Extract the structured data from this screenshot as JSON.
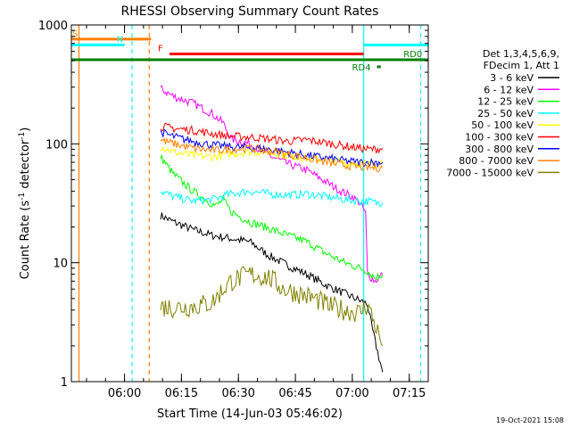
{
  "chart_data": {
    "type": "line",
    "title": "RHESSI Observing Summary Count Rates",
    "xlabel": "Start Time (14-Jun-03 05:46:02)",
    "ylabel": "Count Rate (s⁻¹ detector⁻¹)",
    "ylabel_main": "Count Rate (s",
    "ylabel_exp1": "-1",
    "ylabel_mid": " detector",
    "ylabel_exp2": "-1",
    "ylabel_end": ")",
    "yscale": "log",
    "ylim": [
      1,
      1000
    ],
    "xlim_minutes_since_0546": [
      0,
      94
    ],
    "x_ticks": [
      {
        "label": "06:00",
        "t": 14
      },
      {
        "label": "06:15",
        "t": 29
      },
      {
        "label": "06:30",
        "t": 44
      },
      {
        "label": "06:45",
        "t": 59
      },
      {
        "label": "07:00",
        "t": 74
      },
      {
        "label": "07:15",
        "t": 89
      }
    ],
    "y_ticks": [
      {
        "label": "1",
        "v": 1
      },
      {
        "label": "10",
        "v": 10
      },
      {
        "label": "100",
        "v": 100
      },
      {
        "label": "1000",
        "v": 1000
      }
    ],
    "legend_header": [
      "Det 1,3,4,5,6,9,",
      "FDecim 1, Att 1"
    ],
    "series": [
      {
        "name": "3 - 6 keV",
        "color": "#000000",
        "points": [
          [
            23.5,
            25
          ],
          [
            27,
            22
          ],
          [
            32,
            19
          ],
          [
            37,
            17
          ],
          [
            42,
            16
          ],
          [
            47,
            15
          ],
          [
            52,
            11.5
          ],
          [
            57,
            9.5
          ],
          [
            62,
            8
          ],
          [
            67,
            6.5
          ],
          [
            72,
            5.5
          ],
          [
            76,
            4.8
          ],
          [
            78,
            4.5
          ],
          [
            79,
            3
          ],
          [
            80,
            2.2
          ],
          [
            81,
            1.6
          ],
          [
            82,
            1.2
          ]
        ]
      },
      {
        "name": "6 - 12 keV",
        "color": "#ff00ff",
        "points": [
          [
            23.5,
            290
          ],
          [
            27,
            250
          ],
          [
            32,
            220
          ],
          [
            37,
            180
          ],
          [
            40,
            150
          ],
          [
            42,
            110
          ],
          [
            47,
            100
          ],
          [
            52,
            80
          ],
          [
            57,
            68
          ],
          [
            62,
            60
          ],
          [
            67,
            48
          ],
          [
            71,
            40
          ],
          [
            74,
            36
          ],
          [
            76,
            32
          ],
          [
            77.5,
            26
          ],
          [
            78,
            8
          ],
          [
            80,
            7
          ],
          [
            82,
            8
          ]
        ]
      },
      {
        "name": "12 - 25 keV",
        "color": "#00ff00",
        "points": [
          [
            23.5,
            78
          ],
          [
            27,
            55
          ],
          [
            32,
            40
          ],
          [
            36,
            33
          ],
          [
            38,
            30
          ],
          [
            40,
            34
          ],
          [
            42,
            27
          ],
          [
            47,
            22
          ],
          [
            52,
            19.5
          ],
          [
            57,
            17
          ],
          [
            62,
            15
          ],
          [
            67,
            12
          ],
          [
            72,
            10
          ],
          [
            76,
            9
          ],
          [
            78,
            8.5
          ],
          [
            80,
            7.5
          ],
          [
            82,
            8
          ]
        ]
      },
      {
        "name": "25 - 50 keV",
        "color": "#00ffff",
        "points": [
          [
            23.5,
            40
          ],
          [
            27,
            36
          ],
          [
            32,
            33
          ],
          [
            37,
            34
          ],
          [
            42,
            38
          ],
          [
            47,
            40
          ],
          [
            52,
            38
          ],
          [
            57,
            37
          ],
          [
            62,
            38
          ],
          [
            67,
            36
          ],
          [
            72,
            34
          ],
          [
            76,
            33
          ],
          [
            78,
            33
          ],
          [
            80,
            32
          ],
          [
            82,
            32
          ]
        ]
      },
      {
        "name": "50 - 100 keV",
        "color": "#ffff00",
        "points": [
          [
            23.5,
            95
          ],
          [
            27,
            85
          ],
          [
            32,
            80
          ],
          [
            37,
            78
          ],
          [
            42,
            82
          ],
          [
            47,
            86
          ],
          [
            52,
            85
          ],
          [
            57,
            80
          ],
          [
            62,
            76
          ],
          [
            67,
            74
          ],
          [
            72,
            70
          ],
          [
            76,
            68
          ],
          [
            80,
            68
          ],
          [
            82,
            70
          ]
        ]
      },
      {
        "name": "100 - 300 keV",
        "color": "#ff0000",
        "points": [
          [
            23.5,
            140
          ],
          [
            27,
            135
          ],
          [
            32,
            130
          ],
          [
            37,
            122
          ],
          [
            42,
            116
          ],
          [
            47,
            114
          ],
          [
            52,
            110
          ],
          [
            57,
            105
          ],
          [
            62,
            108
          ],
          [
            67,
            102
          ],
          [
            72,
            96
          ],
          [
            76,
            92
          ],
          [
            78,
            90
          ],
          [
            80,
            90
          ],
          [
            82,
            92
          ]
        ]
      },
      {
        "name": "300 - 800 keV",
        "color": "#0000ff",
        "points": [
          [
            23.5,
            125
          ],
          [
            27,
            115
          ],
          [
            32,
            105
          ],
          [
            37,
            98
          ],
          [
            42,
            94
          ],
          [
            47,
            93
          ],
          [
            52,
            90
          ],
          [
            57,
            85
          ],
          [
            62,
            80
          ],
          [
            67,
            76
          ],
          [
            72,
            72
          ],
          [
            76,
            70
          ],
          [
            78,
            70
          ],
          [
            80,
            70
          ],
          [
            82,
            70
          ]
        ]
      },
      {
        "name": "800 - 7000 keV",
        "color": "#ff8000",
        "points": [
          [
            23.5,
            108
          ],
          [
            27,
            100
          ],
          [
            32,
            92
          ],
          [
            37,
            88
          ],
          [
            42,
            90
          ],
          [
            47,
            92
          ],
          [
            52,
            88
          ],
          [
            57,
            82
          ],
          [
            62,
            76
          ],
          [
            67,
            70
          ],
          [
            72,
            66
          ],
          [
            76,
            64
          ],
          [
            78,
            63
          ],
          [
            80,
            63
          ],
          [
            82,
            63
          ]
        ]
      },
      {
        "name": "7000 - 15000 keV",
        "color": "#808000",
        "points": [
          [
            23.5,
            4.3
          ],
          [
            27,
            4.2
          ],
          [
            32,
            4.3
          ],
          [
            37,
            4.6
          ],
          [
            40,
            6
          ],
          [
            42,
            7
          ],
          [
            47,
            8
          ],
          [
            52,
            7.5
          ],
          [
            56,
            6
          ],
          [
            60,
            5.5
          ],
          [
            64,
            5
          ],
          [
            68,
            4.3
          ],
          [
            72,
            4
          ],
          [
            76,
            3.8
          ],
          [
            78,
            4.5
          ],
          [
            80,
            3
          ],
          [
            82,
            2
          ]
        ]
      }
    ],
    "flag_bars": [
      {
        "label": "S",
        "color": "#ff8000",
        "t_start": 0,
        "t_end": 21,
        "v": 760
      },
      {
        "label": "N",
        "color": "#00ffff",
        "t_start": 0,
        "t_end": 14,
        "v": 680
      },
      {
        "label": "F",
        "color": "#ff0000",
        "t_start": 23.5,
        "t_end": 77,
        "v": 570
      },
      {
        "label": "",
        "color": "#00ffff",
        "t_start": 77,
        "t_end": 94,
        "v": 680
      },
      {
        "label": "",
        "color": "#008000",
        "t_start": 0,
        "t_end": 94,
        "v": 510
      },
      {
        "label": "RD0",
        "color": "#008000",
        "t_start": 86,
        "t_end": 87,
        "v": 510
      },
      {
        "label": "RD4",
        "color": "#008000",
        "t_start": 80.5,
        "t_end": 81.5,
        "v": 445
      }
    ],
    "vertical_lines": [
      {
        "t": 2,
        "color": "#ff8000",
        "style": "solid"
      },
      {
        "t": 16,
        "color": "#00ffff",
        "style": "dashed"
      },
      {
        "t": 20.5,
        "color": "#ff8000",
        "style": "dashed"
      },
      {
        "t": 77,
        "color": "#00ffff",
        "style": "solid"
      },
      {
        "t": 92,
        "color": "#00ffff",
        "style": "dashed"
      }
    ],
    "footer_date": "19-Oct-2021 15:08"
  }
}
